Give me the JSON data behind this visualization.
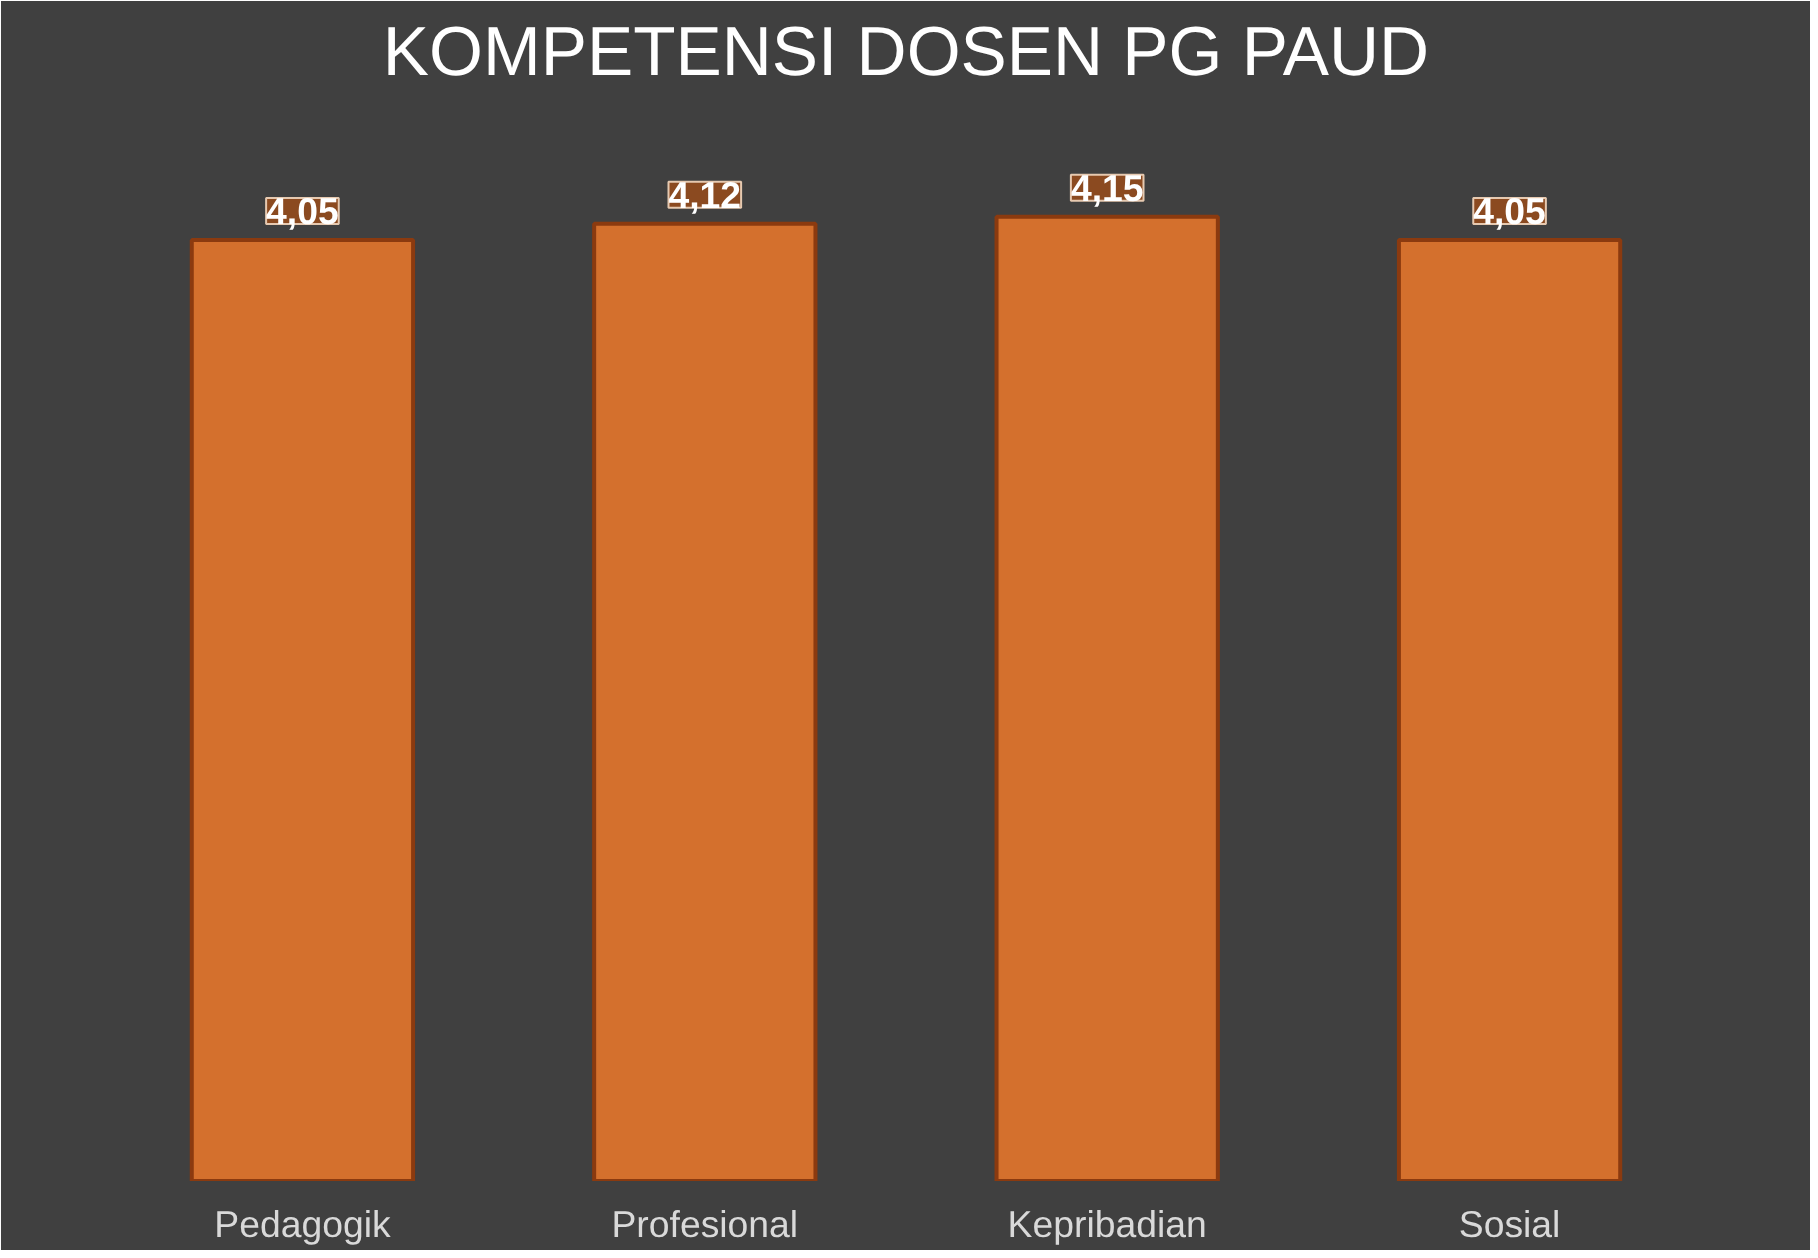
{
  "chart_data": {
    "type": "bar",
    "title": "KOMPETENSI DOSEN PG PAUD",
    "categories": [
      "Pedagogik",
      "Profesional",
      "Kepribadian",
      "Sosial"
    ],
    "series": [
      {
        "color": "#d4702d",
        "values": [
          4.05,
          4.12,
          4.15,
          4.05
        ],
        "value_labels": [
          "4,05",
          "4,12",
          "4,15",
          "4,05"
        ]
      }
    ],
    "tick_labels": "x",
    "grid": false
  }
}
